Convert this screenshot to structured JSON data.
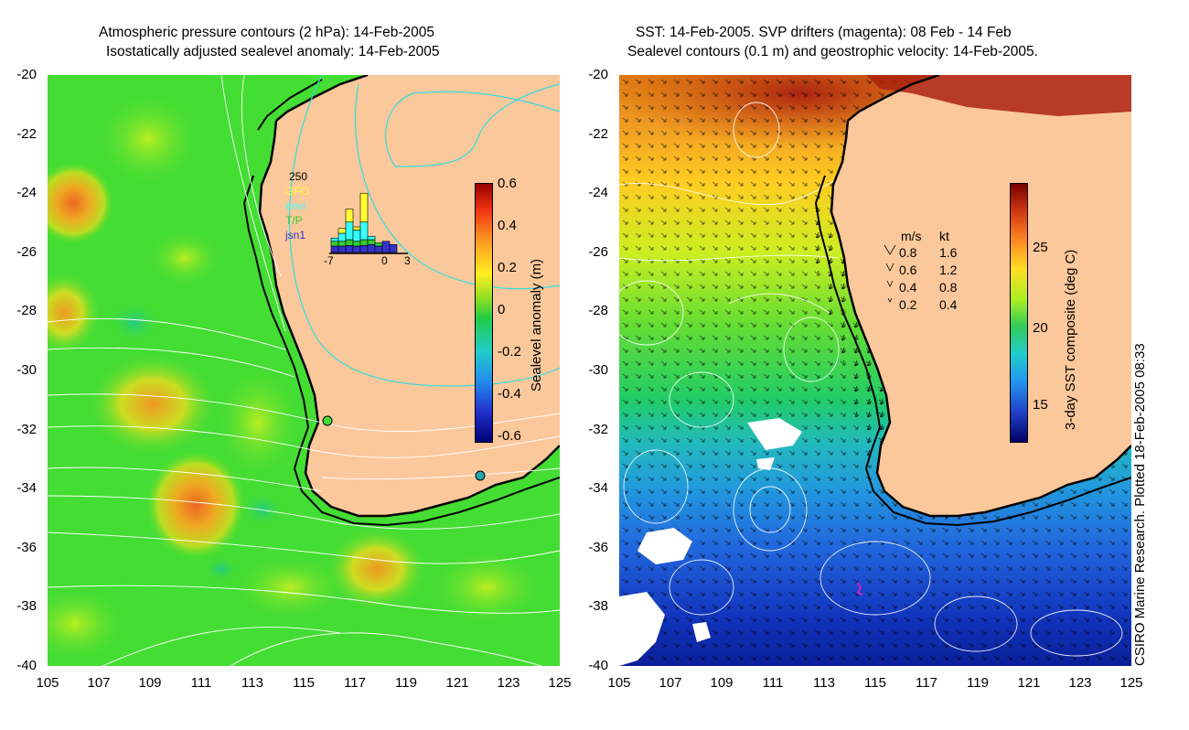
{
  "left_panel": {
    "title_line1": "Atmospheric pressure contours (2 hPa): 14-Feb-2005",
    "title_line2": "Isostatically adjusted sealevel anomaly: 14-Feb-2005",
    "y_ticks": [
      "-20",
      "-22",
      "-24",
      "-26",
      "-28",
      "-30",
      "-32",
      "-34",
      "-36",
      "-38",
      "-40"
    ],
    "x_ticks": [
      "105",
      "107",
      "109",
      "111",
      "113",
      "115",
      "117",
      "119",
      "121",
      "123",
      "125"
    ],
    "colorbar": {
      "title": "Sealevel anomaly (m)",
      "ticks": [
        "0.6",
        "0.4",
        "0.2",
        "0",
        "-0.2",
        "-0.4",
        "-0.6"
      ]
    },
    "inset": {
      "ymax_label": "250",
      "legend": [
        "GFO",
        "envi",
        "T/P",
        "jsn1"
      ],
      "legend_colors": [
        "#ffff33",
        "#33ffff",
        "#33cc33",
        "#3333cc"
      ],
      "x_labels": [
        "-7",
        "0",
        "3"
      ],
      "bars": [
        {
          "day": "-7",
          "jsn1": 20,
          "tp": 15,
          "envi": 10,
          "gfo": 0
        },
        {
          "day": "-6",
          "jsn1": 20,
          "tp": 15,
          "envi": 25,
          "gfo": 15
        },
        {
          "day": "-5",
          "jsn1": 22,
          "tp": 18,
          "envi": 55,
          "gfo": 40
        },
        {
          "day": "-4",
          "jsn1": 20,
          "tp": 15,
          "envi": 35,
          "gfo": 10
        },
        {
          "day": "-3",
          "jsn1": 22,
          "tp": 18,
          "envi": 55,
          "gfo": 90
        },
        {
          "day": "-2",
          "jsn1": 25,
          "tp": 15,
          "envi": 10,
          "gfo": 0
        },
        {
          "day": "-1",
          "jsn1": 20,
          "tp": 10,
          "envi": 0,
          "gfo": 0
        },
        {
          "day": "0",
          "jsn1": 35,
          "tp": 0,
          "envi": 0,
          "gfo": 0
        },
        {
          "day": "1",
          "jsn1": 25,
          "tp": 0,
          "envi": 0,
          "gfo": 0
        }
      ]
    }
  },
  "right_panel": {
    "title_line1": "SST: 14-Feb-2005. SVP drifters (magenta): 08 Feb - 14 Feb",
    "title_line2": "Sealevel contours (0.1 m) and geostrophic velocity: 14-Feb-2005.",
    "y_ticks": [
      "-20",
      "-22",
      "-24",
      "-26",
      "-28",
      "-30",
      "-32",
      "-34",
      "-36",
      "-38",
      "-40"
    ],
    "x_ticks": [
      "105",
      "107",
      "109",
      "111",
      "113",
      "115",
      "117",
      "119",
      "121",
      "123",
      "125"
    ],
    "colorbar": {
      "title": "3-day SST composite (deg C)",
      "ticks": [
        "25",
        "20",
        "15"
      ]
    },
    "velocity_legend": {
      "header_ms": "m/s",
      "header_kt": "kt",
      "rows": [
        {
          "ms": "0.8",
          "kt": "1.6"
        },
        {
          "ms": "0.6",
          "kt": "1.2"
        },
        {
          "ms": "0.4",
          "kt": "0.8"
        },
        {
          "ms": "0.2",
          "kt": "0.4"
        }
      ]
    }
  },
  "footer": "CSIRO Marine Research. Plotted 18-Feb-2005 08:33",
  "colors": {
    "land": "#fbc89b",
    "ocean_green": "#44dd33",
    "coast": "#000000",
    "contour": "#ffffff",
    "cyan_contour": "#33dddd"
  }
}
